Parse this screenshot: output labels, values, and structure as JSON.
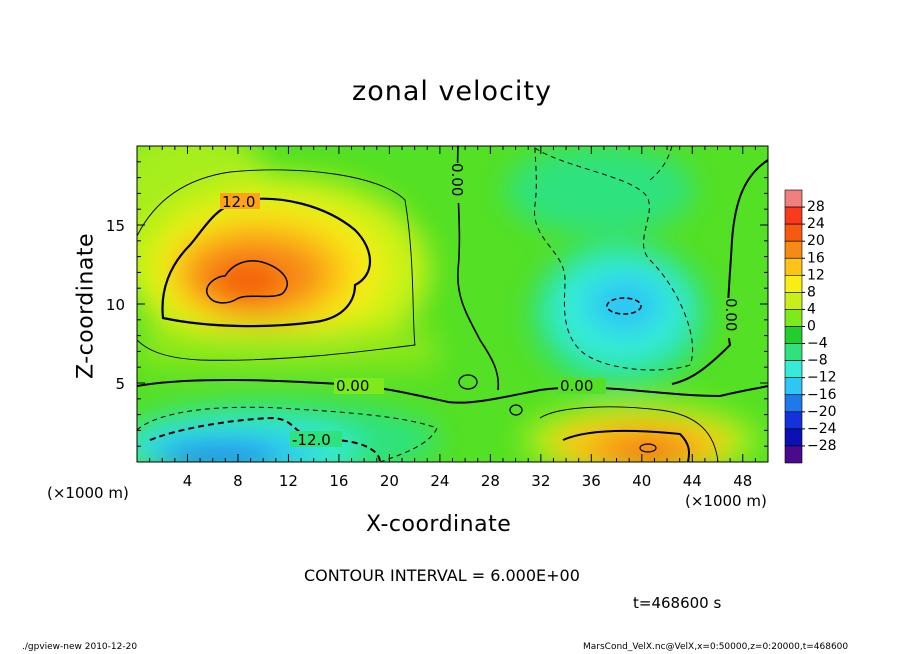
{
  "chart_data": {
    "type": "heatmap",
    "title": "zonal velocity",
    "xlabel": "X-coordinate",
    "ylabel": "Z-coordinate",
    "x_unit_label": "(×1000 m)",
    "xlim": [
      0,
      50
    ],
    "ylim": [
      0,
      20
    ],
    "x_ticks": [
      4,
      8,
      12,
      16,
      20,
      24,
      28,
      32,
      36,
      40,
      44,
      48
    ],
    "y_ticks": [
      5,
      10,
      15
    ],
    "colorbar_levels": [
      28,
      24,
      20,
      16,
      12,
      8,
      4,
      0,
      -4,
      -8,
      -12,
      -16,
      -20,
      -24,
      -28
    ],
    "colorbar_colors": [
      "#f27f7f",
      "#fa3a1a",
      "#f55a10",
      "#f78a12",
      "#fcc414",
      "#f7ee16",
      "#c8f018",
      "#7ee91b",
      "#20cf2c",
      "#2fe27e",
      "#35ecd8",
      "#2dc6f5",
      "#1f79ea",
      "#1431dc",
      "#0a10b5",
      "#4a0a8c"
    ],
    "contour_labels": [
      "12.0",
      "0.00",
      "0.00",
      "0.00",
      "-12.0",
      "0.00"
    ],
    "contour_interval_text": "CONTOUR INTERVAL = 6.000E+00",
    "time_text": "t=468600 s",
    "features": [
      {
        "name": "positive core upper-left",
        "x": 10,
        "z": 11,
        "max": 18
      },
      {
        "name": "negative core lower-left",
        "x": 9,
        "z": 1,
        "min": -20
      },
      {
        "name": "negative region right",
        "x": 38,
        "z": 10,
        "min": -12
      },
      {
        "name": "positive core lower-right",
        "x": 40,
        "z": 1,
        "max": 16
      }
    ]
  },
  "footer": {
    "left": "./gpview-new  2010-12-20",
    "right": "MarsCond_VelX.nc@VelX,x=0:50000,z=0:20000,t=468600"
  }
}
